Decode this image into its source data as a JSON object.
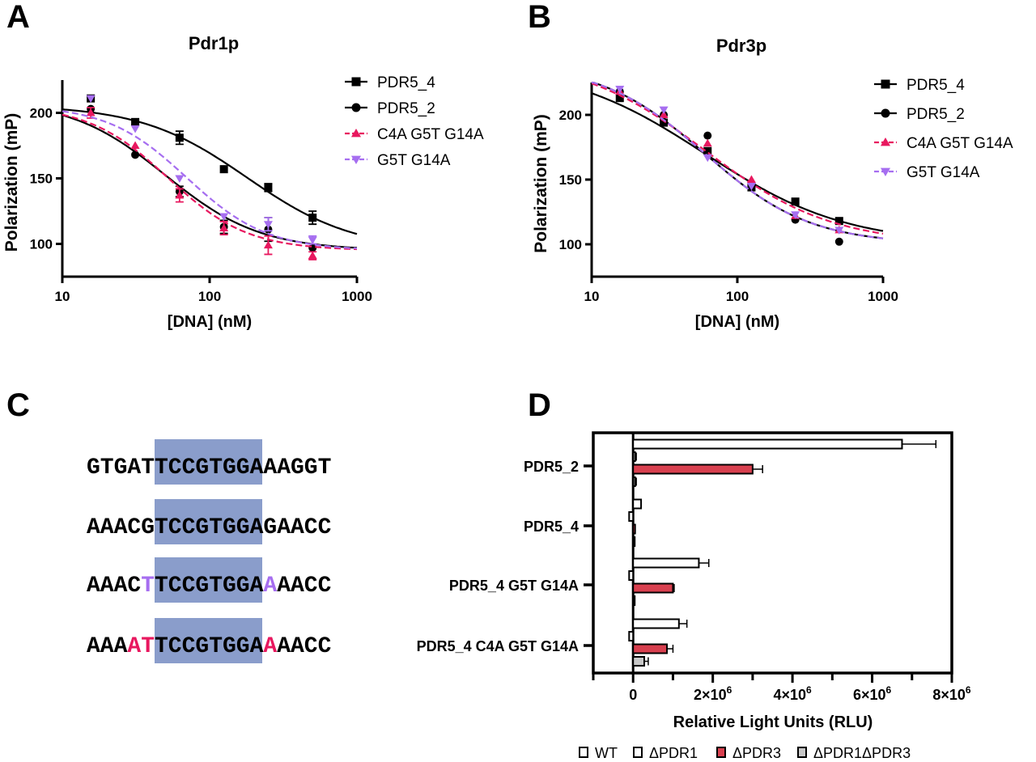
{
  "panel_labels": [
    "A",
    "B",
    "C",
    "D"
  ],
  "colors": {
    "black": "#000000",
    "pink": "#e8185f",
    "purple": "#a66ef0",
    "highlight": "#8a9dcb",
    "red_bar": "#d8404f",
    "gray_bar": "#c8c8c8"
  },
  "chart_data": [
    {
      "type": "scatter",
      "title": "Pdr1p",
      "xlabel": "[DNA] (nM)",
      "ylabel": "Polarization (mP)",
      "xscale": "log",
      "xlim": [
        10,
        1000
      ],
      "ylim": [
        75,
        225
      ],
      "xticks": [
        "10",
        "100",
        "1000"
      ],
      "yticks": [
        "100",
        "150",
        "200"
      ],
      "legend_position": "right",
      "x": [
        15.6,
        31.25,
        62.5,
        125,
        250,
        500
      ],
      "series": [
        {
          "name": "PDR5_4",
          "marker": "square",
          "color": "#000000",
          "dash": false,
          "values": [
            211,
            193,
            181,
            157,
            143,
            120
          ],
          "errors": [
            0,
            2,
            5,
            0,
            3,
            5
          ],
          "fit": {
            "top": 206,
            "bottom": 95,
            "ec50": 180,
            "hill": 1.2
          }
        },
        {
          "name": "PDR5_2",
          "marker": "circle",
          "color": "#000000",
          "dash": false,
          "values": [
            203,
            168,
            140,
            113,
            111,
            97
          ],
          "errors": [
            0,
            0,
            4,
            5,
            9,
            0
          ],
          "fit": {
            "top": 210,
            "bottom": 95,
            "ec50": 50,
            "hill": 1.35
          }
        },
        {
          "name": "C4A G5T G14A",
          "marker": "triangle-up",
          "color": "#e8185f",
          "dash": true,
          "values": [
            200,
            175,
            137,
            112,
            99,
            91
          ],
          "errors": [
            4,
            0,
            5,
            5,
            7,
            3
          ],
          "fit": {
            "top": 206,
            "bottom": 95,
            "ec50": 52,
            "hill": 1.6
          }
        },
        {
          "name": "G5T G14A",
          "marker": "triangle-down",
          "color": "#a66ef0",
          "dash": true,
          "values": [
            211,
            188,
            150,
            121,
            115,
            103
          ],
          "errors": [
            0,
            0,
            0,
            0,
            5,
            3
          ],
          "fit": {
            "top": 206,
            "bottom": 95,
            "ec50": 70,
            "hill": 1.6
          }
        }
      ]
    },
    {
      "type": "scatter",
      "title": "Pdr3p",
      "xlabel": "[DNA] (nM)",
      "ylabel": "Polarization (mP)",
      "xscale": "log",
      "xlim": [
        10,
        1000
      ],
      "ylim": [
        75,
        225
      ],
      "xticks": [
        "10",
        "100",
        "1000"
      ],
      "yticks": [
        "100",
        "150",
        "200"
      ],
      "legend_position": "right",
      "x": [
        15.6,
        31.25,
        62.5,
        125,
        250,
        500
      ],
      "series": [
        {
          "name": "PDR5_4",
          "marker": "square",
          "color": "#000000",
          "dash": false,
          "values": [
            213,
            194,
            172,
            144,
            133,
            118
          ],
          "errors": [
            0,
            0,
            0,
            0,
            0,
            0
          ],
          "fit": {
            "top": 240,
            "bottom": 100,
            "ec50": 60,
            "hill": 0.9
          }
        },
        {
          "name": "PDR5_2",
          "marker": "circle",
          "color": "#000000",
          "dash": false,
          "values": [
            218,
            200,
            184,
            145,
            119,
            102
          ],
          "errors": [
            0,
            0,
            0,
            0,
            0,
            0
          ],
          "fit": {
            "top": 240,
            "bottom": 100,
            "ec50": 60,
            "hill": 1.2
          }
        },
        {
          "name": "C4A G5T G14A",
          "marker": "triangle-up",
          "color": "#e8185f",
          "dash": true,
          "values": [
            218,
            200,
            178,
            150,
            122,
            111
          ],
          "errors": [
            0,
            0,
            0,
            0,
            0,
            0
          ],
          "fit": {
            "top": 245,
            "bottom": 100,
            "ec50": 60,
            "hill": 1.0
          }
        },
        {
          "name": "G5T G14A",
          "marker": "triangle-down",
          "color": "#a66ef0",
          "dash": true,
          "values": [
            220,
            204,
            167,
            145,
            123,
            111
          ],
          "errors": [
            0,
            0,
            0,
            0,
            0,
            0
          ],
          "fit": {
            "top": 240,
            "bottom": 100,
            "ec50": 60,
            "hill": 1.2
          }
        }
      ]
    },
    {
      "type": "bar",
      "orientation": "horizontal",
      "xlabel": "Relative Light Units (RLU)",
      "xlim": [
        -1000000,
        8000000
      ],
      "xticks": [
        {
          "value": 0,
          "label": "0"
        },
        {
          "value": 2000000,
          "label": "2×10",
          "exp": "6"
        },
        {
          "value": 4000000,
          "label": "4×10",
          "exp": "6"
        },
        {
          "value": 6000000,
          "label": "6×10",
          "exp": "6"
        },
        {
          "value": 8000000,
          "label": "8×10",
          "exp": "6"
        }
      ],
      "legend_position": "bottom",
      "categories": [
        "PDR5_2",
        "PDR5_4",
        "PDR5_4 G5T G14A",
        "PDR5_4 C4A G5T G14A"
      ],
      "series": [
        {
          "name": "WT",
          "fill": "#ffffff",
          "values": [
            6750000,
            200000,
            1650000,
            1150000
          ],
          "errors": [
            850000,
            0,
            250000,
            200000
          ]
        },
        {
          "name": "ΔPDR1",
          "fill": "#ffffff",
          "values": [
            50000,
            -100000,
            -100000,
            -100000
          ],
          "errors": [
            30000,
            0,
            0,
            0
          ]
        },
        {
          "name": "ΔPDR3",
          "fill": "#d8404f",
          "values": [
            3000000,
            50000,
            1000000,
            850000
          ],
          "errors": [
            250000,
            0,
            30000,
            150000
          ]
        },
        {
          "name": "ΔPDR1ΔPDR3",
          "fill": "#c8c8c8",
          "values": [
            50000,
            10000,
            0,
            280000
          ],
          "errors": [
            30000,
            0,
            0,
            100000
          ]
        }
      ]
    }
  ],
  "sequences": [
    [
      {
        "t": "GTGATTCCGTGGAAAGGT",
        "c": "#000000"
      }
    ],
    [
      {
        "t": "AAACGTCCGTGGAGAACC",
        "c": "#000000"
      }
    ],
    [
      {
        "t": "AAAC",
        "c": "#000000"
      },
      {
        "t": "T",
        "c": "#a66ef0"
      },
      {
        "t": "TCCGTGGA",
        "c": "#000000"
      },
      {
        "t": "A",
        "c": "#a66ef0"
      },
      {
        "t": "AACC",
        "c": "#000000"
      }
    ],
    [
      {
        "t": "AAA",
        "c": "#000000"
      },
      {
        "t": "AT",
        "c": "#e8185f"
      },
      {
        "t": "TCCGTGGA",
        "c": "#000000"
      },
      {
        "t": "A",
        "c": "#e8185f"
      },
      {
        "t": "AACC",
        "c": "#000000"
      }
    ]
  ]
}
